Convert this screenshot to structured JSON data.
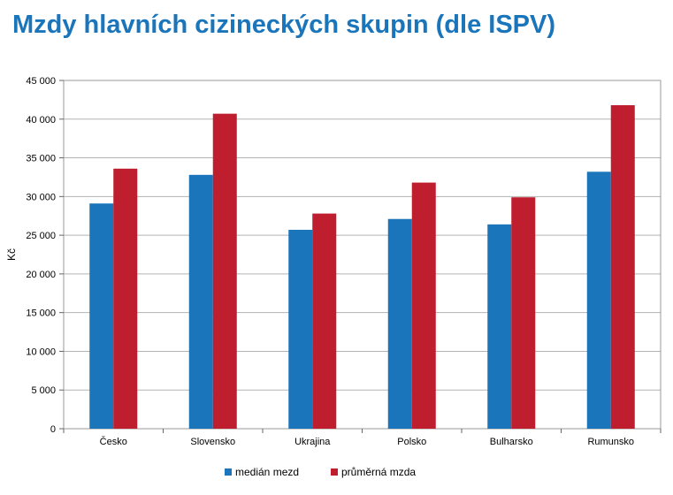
{
  "title": "Mzdy hlavních cizineckých skupin (dle ISPV)",
  "colors": {
    "title": "#1a75bb",
    "median": "#1a75bb",
    "average": "#be1e2d",
    "grid": "#b3b3b3"
  },
  "chart_data": {
    "type": "bar",
    "categories": [
      "Česko",
      "Slovensko",
      "Ukrajina",
      "Polsko",
      "Bulharsko",
      "Rumunsko"
    ],
    "series": [
      {
        "name": "medián mezd",
        "values": [
          29100,
          32800,
          25700,
          27100,
          26400,
          33200
        ]
      },
      {
        "name": "průměrná mzda",
        "values": [
          33600,
          40700,
          27800,
          31800,
          29900,
          41800
        ]
      }
    ],
    "ylabel": "Kč",
    "ylim": [
      0,
      45000
    ],
    "yticks": [
      0,
      5000,
      10000,
      15000,
      20000,
      25000,
      30000,
      35000,
      40000,
      45000
    ],
    "ytick_labels": [
      "0",
      "5 000",
      "10 000",
      "15 000",
      "20 000",
      "25 000",
      "30 000",
      "35 000",
      "40 000",
      "45 000"
    ],
    "grid": true,
    "legend_position": "bottom"
  }
}
